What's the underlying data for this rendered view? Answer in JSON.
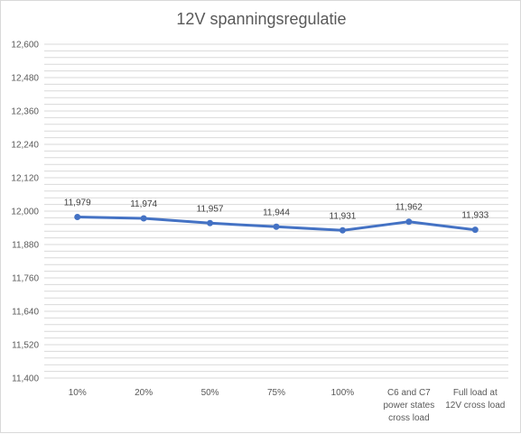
{
  "chart_data": {
    "type": "line",
    "title": "12V spanningsregulatie",
    "xlabel": "",
    "ylabel": "",
    "categories": [
      "10%",
      "20%",
      "50%",
      "75%",
      "100%",
      "C6 and C7 power states cross load",
      "Full load at 12V cross load"
    ],
    "category_lines": [
      [
        "10%"
      ],
      [
        "20%"
      ],
      [
        "50%"
      ],
      [
        "75%"
      ],
      [
        "100%"
      ],
      [
        "C6 and C7",
        "power states",
        "cross load"
      ],
      [
        "Full load at",
        "12V cross load"
      ]
    ],
    "values": [
      11.979,
      11.974,
      11.957,
      11.944,
      11.931,
      11.962,
      11.933
    ],
    "data_labels": [
      "11,979",
      "11,974",
      "11,957",
      "11,944",
      "11,931",
      "11,962",
      "11,933"
    ],
    "ylim": [
      11.4,
      12.6
    ],
    "yticks": [
      11.4,
      11.52,
      11.64,
      11.76,
      11.88,
      12.0,
      12.12,
      12.24,
      12.36,
      12.48,
      12.6
    ],
    "ytick_labels": [
      "11,400",
      "11,520",
      "11,640",
      "11,760",
      "11,880",
      "12,000",
      "12,120",
      "12,240",
      "12,360",
      "12,480",
      "12,600"
    ],
    "minor_grid_step": 0.024,
    "grid": true,
    "legend": "none",
    "line_color": "#4472c4"
  }
}
